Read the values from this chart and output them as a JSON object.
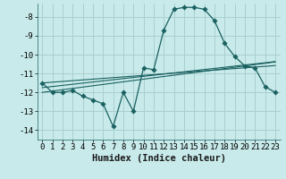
{
  "xlabel": "Humidex (Indice chaleur)",
  "bg_color": "#c8eaea",
  "grid_color": "#aacfcf",
  "line_color": "#1a6060",
  "xlim": [
    -0.5,
    23.5
  ],
  "ylim": [
    -14.5,
    -7.3
  ],
  "x": [
    0,
    1,
    2,
    3,
    4,
    5,
    6,
    7,
    8,
    9,
    10,
    11,
    12,
    13,
    14,
    15,
    16,
    17,
    18,
    19,
    20,
    21,
    22,
    23
  ],
  "y_main": [
    -11.5,
    -12.0,
    -12.0,
    -11.9,
    -12.2,
    -12.4,
    -12.6,
    -13.8,
    -12.0,
    -13.0,
    -10.7,
    -10.8,
    -8.7,
    -7.6,
    -7.5,
    -7.5,
    -7.6,
    -8.2,
    -9.4,
    -10.1,
    -10.6,
    -10.7,
    -11.7,
    -12.0
  ],
  "y_line1": [
    -11.5,
    -11.46,
    -11.42,
    -11.38,
    -11.34,
    -11.3,
    -11.26,
    -11.22,
    -11.18,
    -11.14,
    -11.1,
    -11.06,
    -11.02,
    -10.98,
    -10.94,
    -10.9,
    -10.86,
    -10.82,
    -10.78,
    -10.74,
    -10.7,
    -10.66,
    -10.62,
    -10.58
  ],
  "y_line2": [
    -11.75,
    -11.69,
    -11.63,
    -11.57,
    -11.51,
    -11.45,
    -11.39,
    -11.33,
    -11.27,
    -11.21,
    -11.15,
    -11.09,
    -11.03,
    -10.97,
    -10.91,
    -10.85,
    -10.79,
    -10.73,
    -10.67,
    -10.61,
    -10.55,
    -10.49,
    -10.43,
    -10.37
  ],
  "y_line3": [
    -12.0,
    -11.93,
    -11.86,
    -11.79,
    -11.72,
    -11.65,
    -11.58,
    -11.51,
    -11.44,
    -11.37,
    -11.3,
    -11.23,
    -11.16,
    -11.09,
    -11.02,
    -10.95,
    -10.88,
    -10.81,
    -10.74,
    -10.67,
    -10.6,
    -10.53,
    -10.46,
    -10.39
  ],
  "yticks": [
    -8,
    -9,
    -10,
    -11,
    -12,
    -13,
    -14
  ],
  "xticks": [
    0,
    1,
    2,
    3,
    4,
    5,
    6,
    7,
    8,
    9,
    10,
    11,
    12,
    13,
    14,
    15,
    16,
    17,
    18,
    19,
    20,
    21,
    22,
    23
  ],
  "marker_size": 2.8,
  "tick_fontsize": 6.5,
  "xlabel_fontsize": 7.5
}
